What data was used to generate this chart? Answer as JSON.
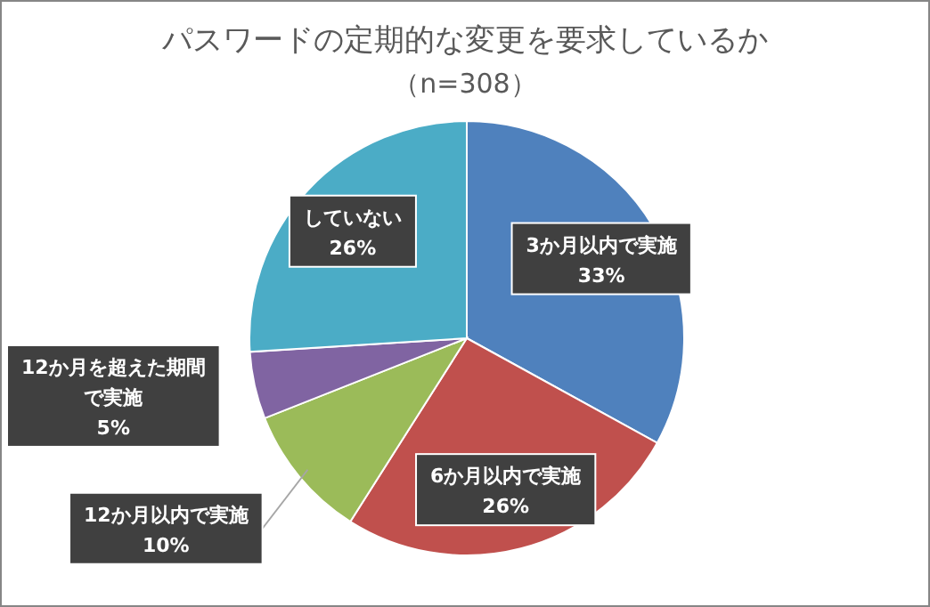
{
  "chart_data": {
    "type": "pie",
    "title": "パスワードの定期的な変更を要求しているか",
    "subtitle": "（n=308）",
    "categories": [
      "3か月以内で実施",
      "6か月以内で実施",
      "12か月以内で実施",
      "12か月を超えた期間で実施",
      "していない"
    ],
    "values": [
      33,
      26,
      10,
      5,
      26
    ],
    "value_labels": [
      "33%",
      "26%",
      "10%",
      "5%",
      "26%"
    ],
    "colors": [
      "#4f81bd",
      "#c0504d",
      "#9bbb59",
      "#8064a2",
      "#4bacc6"
    ]
  }
}
